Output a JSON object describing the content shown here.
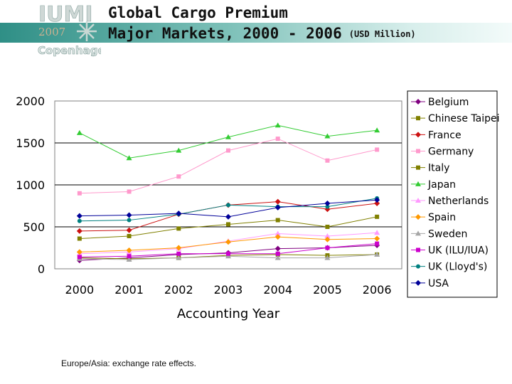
{
  "header": {
    "logo_text_top": "IUMI",
    "logo_year": "2007",
    "logo_city": "Copenhagen",
    "title_line1": "Global Cargo Premium",
    "title_line2": "Major Markets, 2000 - 2006",
    "title_unit": "(USD Million)"
  },
  "footnote": "Europe/Asia: exchange rate effects.",
  "colors": {
    "header_band_start": "#2f8f86",
    "header_band_end": "#f3fbfa"
  },
  "chart_data": {
    "type": "line",
    "title": "",
    "xlabel": "Accounting Year",
    "ylabel": "",
    "categories": [
      "2000",
      "2001",
      "2002",
      "2003",
      "2004",
      "2005",
      "2006"
    ],
    "ylim": [
      0,
      2000
    ],
    "yticks": [
      0,
      500,
      1000,
      1500,
      2000
    ],
    "grid": true,
    "legend_position": "right",
    "series": [
      {
        "name": "Belgium",
        "color": "#800080",
        "marker": "diamond",
        "values": [
          100,
          130,
          170,
          190,
          240,
          250,
          280
        ]
      },
      {
        "name": "Chinese Taipei",
        "color": "#808000",
        "marker": "square",
        "values": [
          360,
          390,
          480,
          530,
          580,
          500,
          620
        ]
      },
      {
        "name": "France",
        "color": "#cc1111",
        "marker": "diamond",
        "values": [
          450,
          460,
          650,
          760,
          800,
          710,
          780
        ]
      },
      {
        "name": "Germany",
        "color": "#ff99cc",
        "marker": "square",
        "values": [
          900,
          920,
          1100,
          1410,
          1550,
          1290,
          1420
        ]
      },
      {
        "name": "Italy",
        "color": "#808000",
        "marker": "square",
        "values": [
          130,
          120,
          130,
          160,
          170,
          160,
          170
        ]
      },
      {
        "name": "Japan",
        "color": "#33cc33",
        "marker": "triangle",
        "values": [
          1620,
          1320,
          1410,
          1570,
          1710,
          1580,
          1650
        ]
      },
      {
        "name": "Netherlands",
        "color": "#ff99ff",
        "marker": "triangle",
        "values": [
          180,
          200,
          240,
          330,
          420,
          390,
          430
        ]
      },
      {
        "name": "Spain",
        "color": "#ff9900",
        "marker": "diamond",
        "values": [
          200,
          220,
          250,
          320,
          380,
          350,
          360
        ]
      },
      {
        "name": "Sweden",
        "color": "#a6a6a6",
        "marker": "triangle",
        "values": [
          120,
          110,
          130,
          150,
          130,
          130,
          170
        ]
      },
      {
        "name": "UK (ILU/IUA)",
        "color": "#cc00cc",
        "marker": "square",
        "values": [
          140,
          150,
          180,
          180,
          180,
          250,
          300
        ]
      },
      {
        "name": "UK (Lloyd's)",
        "color": "#008080",
        "marker": "circle",
        "values": [
          570,
          580,
          650,
          760,
          740,
          740,
          840
        ]
      },
      {
        "name": "USA",
        "color": "#000099",
        "marker": "diamond",
        "values": [
          630,
          640,
          660,
          620,
          730,
          780,
          820
        ]
      }
    ]
  }
}
